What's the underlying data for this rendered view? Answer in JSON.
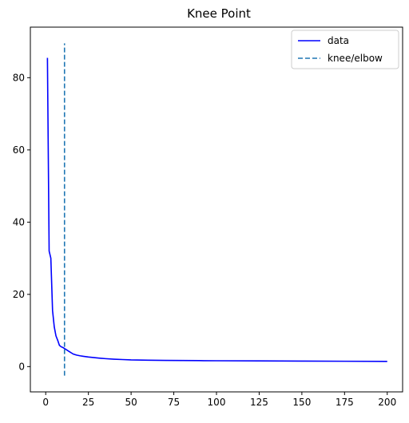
{
  "chart_data": {
    "type": "line",
    "title": "Knee Point",
    "xlabel": "",
    "ylabel": "",
    "xlim": [
      -9,
      209
    ],
    "ylim": [
      -7,
      94
    ],
    "xticks": [
      0,
      25,
      50,
      75,
      100,
      125,
      150,
      175,
      200
    ],
    "yticks": [
      0,
      20,
      40,
      60,
      80
    ],
    "grid": false,
    "legend_position": "top-right",
    "series": [
      {
        "name": "data",
        "style": "solid",
        "color": "#0000ff",
        "x": [
          1,
          2,
          3,
          4,
          5,
          6,
          7,
          8,
          9,
          10,
          11,
          12,
          13,
          14,
          15,
          16,
          18,
          20,
          22,
          25,
          30,
          35,
          40,
          45,
          50,
          60,
          70,
          80,
          90,
          100,
          125,
          150,
          175,
          200
        ],
        "y": [
          85.5,
          32.0,
          30.0,
          15.5,
          11.0,
          8.5,
          7.3,
          5.9,
          5.5,
          5.3,
          5.0,
          4.7,
          4.4,
          4.1,
          3.8,
          3.5,
          3.2,
          3.0,
          2.85,
          2.65,
          2.4,
          2.2,
          2.05,
          1.95,
          1.85,
          1.78,
          1.72,
          1.68,
          1.65,
          1.62,
          1.57,
          1.52,
          1.48,
          1.45
        ]
      },
      {
        "name": "knee/elbow",
        "style": "dashed",
        "color": "#1f77b4",
        "x": [
          11,
          11
        ],
        "y": [
          -2.5,
          89.5
        ]
      }
    ]
  }
}
